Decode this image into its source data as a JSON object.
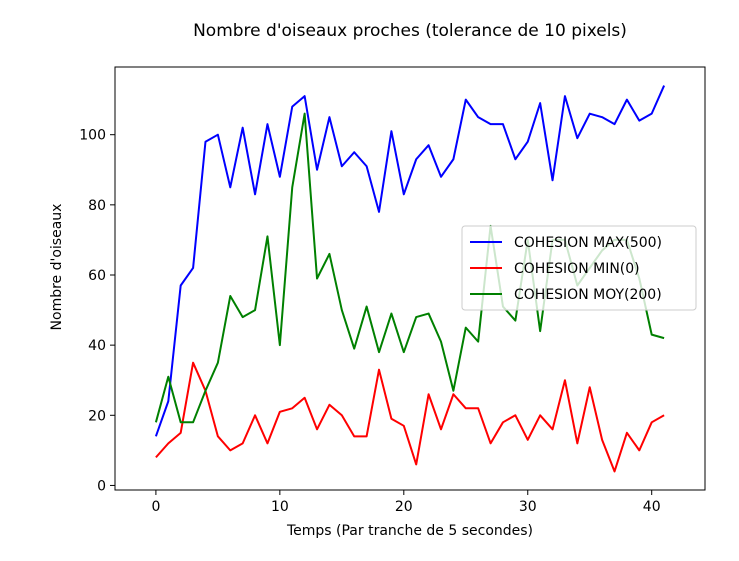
{
  "chart_data": {
    "type": "line",
    "title": "Nombre d'oiseaux proches (tolerance de 10 pixels)",
    "xlabel": "Temps (Par tranche de 5 secondes)",
    "ylabel": "Nombre d'oiseaux",
    "xlim": [
      -3.3,
      44.3
    ],
    "ylim": [
      -1.3,
      119.3
    ],
    "xticks": [
      0,
      10,
      20,
      30,
      40
    ],
    "yticks": [
      0,
      20,
      40,
      60,
      80,
      100
    ],
    "grid": false,
    "legend_position": "center-right",
    "x": [
      0,
      1,
      2,
      3,
      4,
      5,
      6,
      7,
      8,
      9,
      10,
      11,
      12,
      13,
      14,
      15,
      16,
      17,
      18,
      19,
      20,
      21,
      22,
      23,
      24,
      25,
      26,
      27,
      28,
      29,
      30,
      31,
      32,
      33,
      34,
      35,
      36,
      37,
      38,
      39,
      40,
      41
    ],
    "series": [
      {
        "name": "COHESION MAX(500)",
        "color": "#0000ff",
        "values": [
          14,
          24,
          57,
          62,
          98,
          100,
          85,
          102,
          83,
          103,
          88,
          108,
          111,
          90,
          105,
          91,
          95,
          91,
          78,
          101,
          83,
          93,
          97,
          88,
          93,
          110,
          105,
          103,
          103,
          93,
          98,
          109,
          87,
          111,
          99,
          106,
          105,
          103,
          110,
          104,
          106,
          114
        ]
      },
      {
        "name": "COHESION MIN(0)",
        "color": "#ff0000",
        "values": [
          8,
          12,
          15,
          35,
          27,
          14,
          10,
          12,
          20,
          12,
          21,
          22,
          25,
          16,
          23,
          20,
          14,
          14,
          33,
          19,
          17,
          6,
          26,
          16,
          26,
          22,
          22,
          12,
          18,
          20,
          13,
          20,
          16,
          30,
          12,
          28,
          13,
          4,
          15,
          10,
          18,
          20
        ]
      },
      {
        "name": "COHESION MOY(200)",
        "color": "#008000",
        "values": [
          18,
          31,
          18,
          18,
          27,
          35,
          54,
          48,
          50,
          71,
          40,
          85,
          106,
          59,
          66,
          50,
          39,
          51,
          38,
          49,
          38,
          48,
          49,
          41,
          27,
          45,
          41,
          74,
          51,
          47,
          70,
          44,
          70,
          70,
          57,
          62,
          67,
          70,
          70,
          59,
          43,
          42
        ]
      }
    ]
  }
}
